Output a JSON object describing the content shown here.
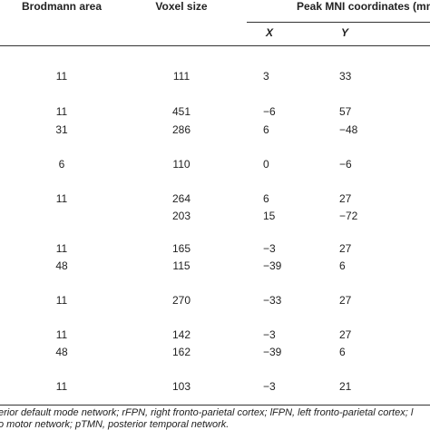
{
  "table": {
    "headers": [
      "Brodmann area",
      "Voxel size",
      "Peak MNI coordinates (mm"
    ],
    "subheaders": [
      "X",
      "Y"
    ],
    "rows": [
      [
        "11",
        "111",
        "3",
        "33"
      ],
      [
        "11",
        "451",
        "−6",
        "57"
      ],
      [
        "31",
        "286",
        "6",
        "−48"
      ],
      [
        "6",
        "110",
        "0",
        "−6"
      ],
      [
        "11",
        "264",
        "6",
        "27"
      ],
      [
        null,
        "203",
        "15",
        "−72"
      ],
      [
        "11",
        "165",
        "−3",
        "27"
      ],
      [
        "48",
        "115",
        "−39",
        "6"
      ],
      [
        "11",
        "270",
        "−33",
        "27"
      ],
      [
        "11",
        "142",
        "−3",
        "27"
      ],
      [
        "48",
        "162",
        "−39",
        "6"
      ],
      [
        "11",
        "103",
        "−3",
        "21"
      ]
    ]
  },
  "footnote": [
    "erior default mode network; rFPN, right fronto-parietal cortex; lFPN, left fronto-parietal cortex; l",
    "o motor network; pTMN, posterior temporal network."
  ]
}
